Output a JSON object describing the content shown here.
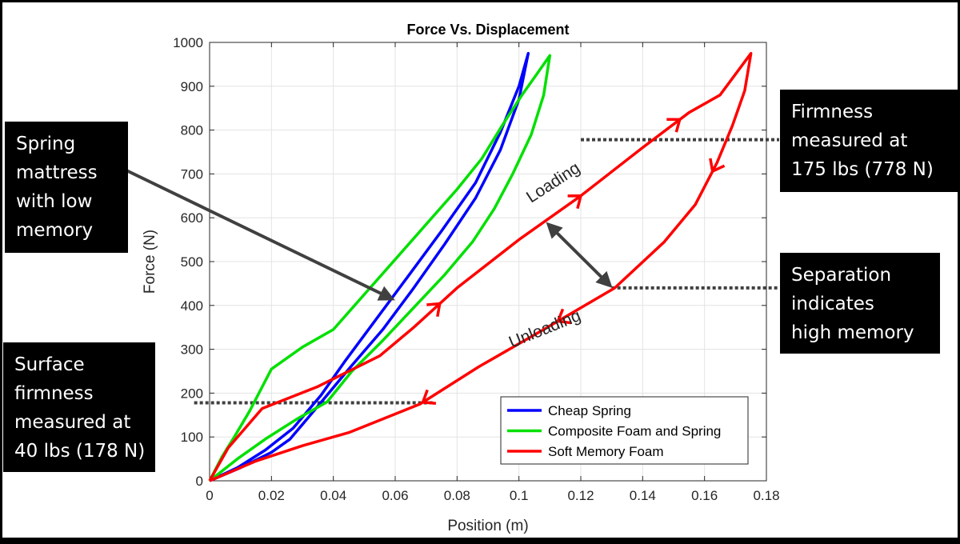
{
  "chart_data": {
    "type": "line",
    "title": "Force Vs. Displacement",
    "xlabel": "Position (m)",
    "ylabel": "Force (N)",
    "xlim": [
      0,
      0.18
    ],
    "ylim": [
      0,
      1000
    ],
    "xticks": [
      "0",
      "0.02",
      "0.04",
      "0.06",
      "0.08",
      "0.1",
      "0.12",
      "0.14",
      "0.16",
      "0.18"
    ],
    "yticks": [
      "0",
      "100",
      "200",
      "300",
      "400",
      "500",
      "600",
      "700",
      "800",
      "900",
      "1000"
    ],
    "grid": true,
    "legend_position": "lower-right",
    "series": [
      {
        "name": "Cheap Spring",
        "color": "#0000ff",
        "x": [
          0,
          0.01,
          0.02,
          0.026,
          0.035,
          0.045,
          0.056,
          0.066,
          0.076,
          0.086,
          0.094,
          0.1,
          0.103,
          0.1,
          0.094,
          0.086,
          0.075,
          0.064,
          0.054,
          0.044,
          0.036,
          0.027,
          0.018,
          0.009,
          0
        ],
        "y": [
          0,
          30,
          65,
          95,
          170,
          255,
          345,
          440,
          540,
          645,
          755,
          870,
          975,
          900,
          795,
          680,
          570,
          465,
          370,
          275,
          195,
          120,
          70,
          30,
          0
        ]
      },
      {
        "name": "Composite Foam and Spring",
        "color": "#00e000",
        "x": [
          0,
          0.004,
          0.008,
          0.013,
          0.02,
          0.03,
          0.04,
          0.05,
          0.06,
          0.07,
          0.08,
          0.088,
          0.095,
          0.101,
          0.106,
          0.11,
          0.108,
          0.104,
          0.098,
          0.092,
          0.085,
          0.076,
          0.066,
          0.056,
          0.046,
          0.038,
          0.028,
          0.018,
          0.009,
          0
        ],
        "y": [
          0,
          55,
          100,
          160,
          255,
          305,
          345,
          425,
          505,
          585,
          665,
          735,
          815,
          880,
          930,
          970,
          880,
          790,
          700,
          620,
          545,
          470,
          395,
          320,
          250,
          180,
          140,
          95,
          50,
          0
        ]
      },
      {
        "name": "Soft Memory Foam",
        "color": "#ff0000",
        "x": [
          0,
          0.006,
          0.017,
          0.035,
          0.055,
          0.066,
          0.08,
          0.1,
          0.12,
          0.14,
          0.155,
          0.165,
          0.175,
          0.173,
          0.169,
          0.164,
          0.157,
          0.147,
          0.131,
          0.108,
          0.087,
          0.068,
          0.045,
          0.03,
          0.015,
          0.005,
          0
        ],
        "y": [
          0,
          75,
          165,
          215,
          285,
          350,
          440,
          550,
          650,
          760,
          840,
          880,
          975,
          890,
          810,
          725,
          630,
          545,
          440,
          345,
          260,
          175,
          110,
          80,
          45,
          15,
          0
        ]
      }
    ],
    "reference_lines": [
      {
        "y": 778,
        "x_start": 0.12,
        "x_end": 0.18,
        "color": "#404040"
      },
      {
        "y": 178,
        "x_start": -0.005,
        "x_end": 0.068,
        "color": "#404040"
      },
      {
        "y": 440,
        "x_start": 0.13,
        "x_end": 0.18,
        "color": "#404040"
      }
    ],
    "curve_labels": [
      {
        "text": "Loading",
        "x": 0.112,
        "y": 670,
        "rotate": -33
      },
      {
        "text": "Unloading",
        "x": 0.109,
        "y": 335,
        "rotate": -22
      }
    ]
  },
  "callouts": {
    "spring": {
      "lines": [
        "Spring",
        "mattress",
        "with low",
        "memory"
      ]
    },
    "surface": {
      "lines": [
        "Surface",
        "firmness",
        "measured at",
        "40 lbs (178 N)"
      ]
    },
    "firmness": {
      "lines": [
        "Firmness",
        "measured at",
        "175 lbs (778 N)"
      ]
    },
    "separation": {
      "lines": [
        "Separation",
        "indicates",
        "high memory"
      ]
    }
  }
}
